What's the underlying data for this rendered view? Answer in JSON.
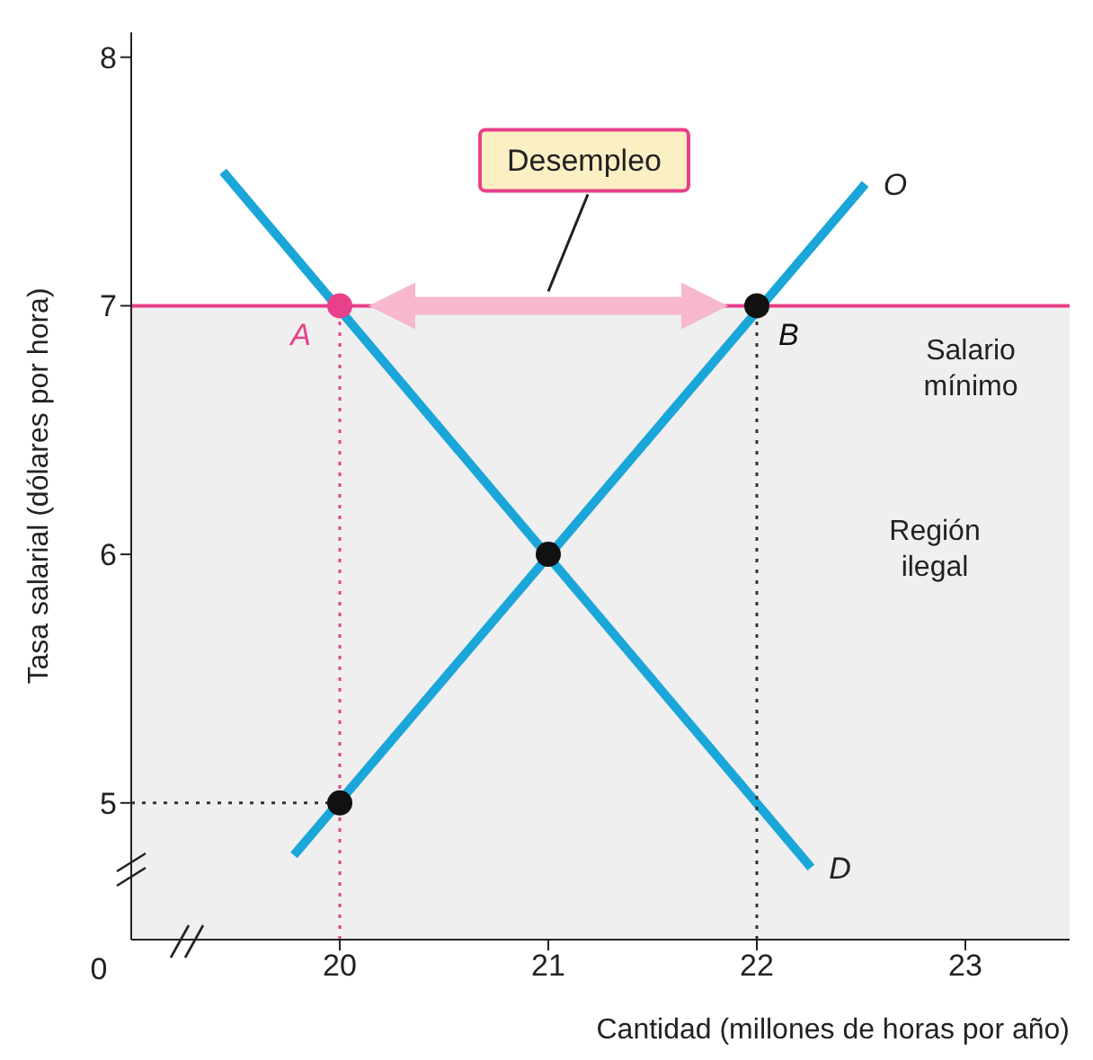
{
  "chart_data": {
    "type": "line",
    "xlabel": "Cantidad (millones de horas por año)",
    "ylabel": "Tasa salarial (dólares por hora)",
    "xlim": [
      19,
      23.5
    ],
    "ylim": [
      4.45,
      8.1
    ],
    "xticks": [
      20,
      21,
      22,
      23
    ],
    "yticks": [
      5,
      6,
      7,
      8
    ],
    "series": [
      {
        "name": "D",
        "color": "#1ba6d9",
        "x": [
          19.44,
          22.26
        ],
        "values": [
          7.54,
          4.74
        ]
      },
      {
        "name": "O",
        "color": "#1ba6d9",
        "x": [
          19.78,
          22.52
        ],
        "values": [
          4.79,
          7.49
        ]
      },
      {
        "color": "#e8408a",
        "x": [
          20,
          20
        ],
        "values": [
          4.45,
          7
        ],
        "line_style": "dotted"
      },
      {
        "color": "#333333",
        "x": [
          22,
          22
        ],
        "values": [
          4.45,
          7
        ],
        "line_style": "dotted"
      },
      {
        "color": "#333333",
        "x": [
          19,
          20
        ],
        "values": [
          5,
          5
        ],
        "line_style": "dotted"
      },
      {
        "type": "scatter",
        "x": [
          20,
          22,
          21,
          20
        ],
        "values": [
          7,
          7,
          6,
          5
        ],
        "colors": [
          "#e8408a",
          "#111111",
          "#111111",
          "#111111"
        ],
        "marker": "circle"
      }
    ],
    "ref_lines": [
      {
        "axis": "y",
        "value": 7,
        "label": "Salario mínimo",
        "color": "#e8408a"
      }
    ],
    "bands": [
      {
        "axis": "y",
        "from": 4.45,
        "to": 7,
        "label": "Región ilegal",
        "color": "#efefef"
      }
    ],
    "annotations": [
      "Desempleo",
      "0",
      {
        "text": "A",
        "x": 20,
        "y": 7
      },
      {
        "text": "B",
        "x": 22,
        "y": 7
      }
    ]
  }
}
